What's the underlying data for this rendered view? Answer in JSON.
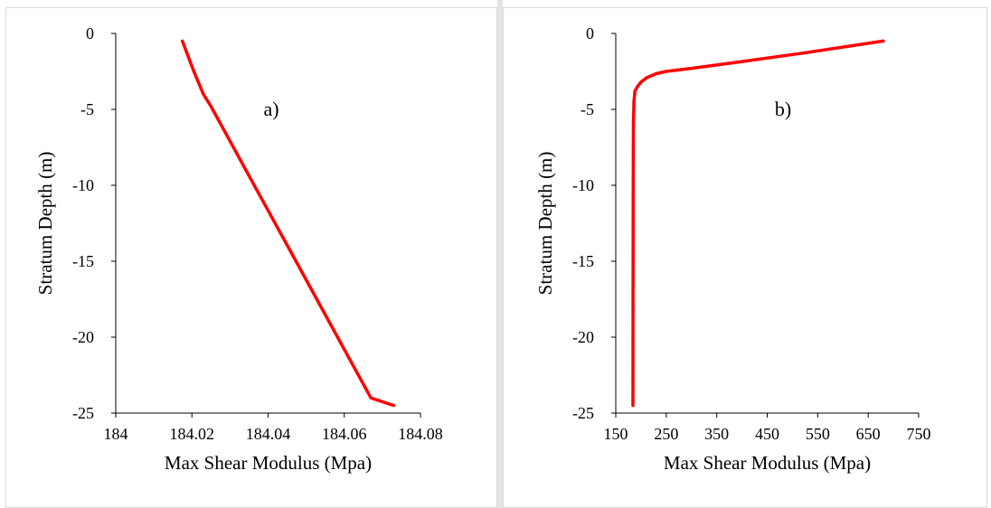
{
  "chart_data": [
    {
      "type": "line",
      "panel_label": "a)",
      "xlabel": "Max Shear Modulus (Mpa)",
      "ylabel": "Stratum Depth (m)",
      "xlim": [
        184,
        184.08
      ],
      "ylim": [
        -25,
        0
      ],
      "xticks": [
        "184",
        "184.02",
        "184.04",
        "184.06",
        "184.08"
      ],
      "yticks": [
        "0",
        "-5",
        "-10",
        "-15",
        "-20",
        "-25"
      ],
      "grid": false,
      "line_color": "#ff0000",
      "series": [
        {
          "x": [
            184.0175,
            184.0205,
            184.023,
            184.025,
            184.0355,
            184.046,
            184.0565,
            184.067,
            184.073
          ],
          "y": [
            -0.5,
            -2.5,
            -4,
            -4.8,
            -9.6,
            -14.4,
            -19.2,
            -24.0,
            -24.5
          ]
        }
      ]
    },
    {
      "type": "line",
      "panel_label": "b)",
      "xlabel": "Max Shear Modulus (Mpa)",
      "ylabel": "Stratum Depth (m)",
      "xlim": [
        150,
        750
      ],
      "ylim": [
        -25,
        0
      ],
      "xticks": [
        "150",
        "250",
        "350",
        "450",
        "550",
        "650",
        "750"
      ],
      "yticks": [
        "0",
        "-5",
        "-10",
        "-15",
        "-20",
        "-25"
      ],
      "grid": false,
      "line_color": "#ff0000",
      "series": [
        {
          "x": [
            680,
            520,
            390,
            300,
            250,
            230,
            212,
            200,
            193,
            188,
            186,
            185,
            184.5,
            184.2,
            184
          ],
          "y": [
            -0.5,
            -1.3,
            -1.9,
            -2.3,
            -2.5,
            -2.65,
            -2.9,
            -3.2,
            -3.5,
            -3.8,
            -4.5,
            -6,
            -10,
            -18,
            -24.5
          ]
        }
      ]
    }
  ]
}
